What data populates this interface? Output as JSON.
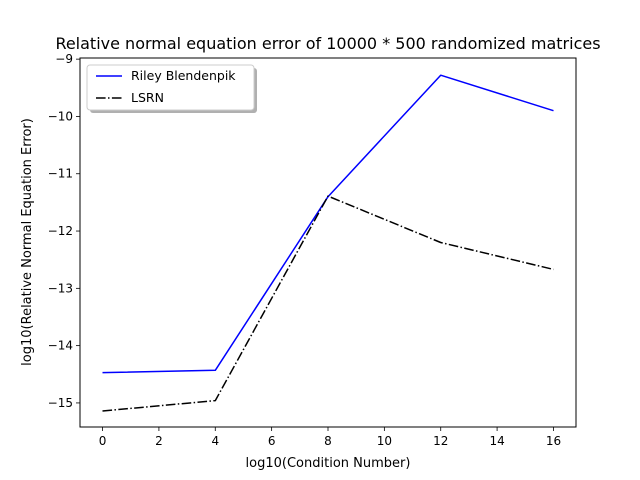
{
  "chart_data": {
    "type": "line",
    "title": "Relative normal equation error of 10000 * 500 randomized matrices",
    "xlabel": "log10(Condition Number)",
    "ylabel": "log10(Relative Normal Equation Error)",
    "xlim": [
      -0.8,
      16.8
    ],
    "ylim": [
      -15.42,
      -8.98
    ],
    "xticks": [
      0,
      2,
      4,
      6,
      8,
      10,
      12,
      14,
      16
    ],
    "yticks": [
      -15,
      -14,
      -13,
      -12,
      -11,
      -10,
      -9
    ],
    "grid": false,
    "legend_position": "top-left",
    "x": [
      0,
      4,
      8,
      12,
      16
    ],
    "series": [
      {
        "name": "Riley Blendenpik",
        "values": [
          -14.47,
          -14.43,
          -11.4,
          -9.28,
          -9.9
        ],
        "color": "#0000ff",
        "style": "solid"
      },
      {
        "name": "LSRN",
        "values": [
          -15.14,
          -14.96,
          -11.39,
          -12.2,
          -12.67
        ],
        "color": "#000000",
        "style": "dashdot"
      }
    ]
  }
}
